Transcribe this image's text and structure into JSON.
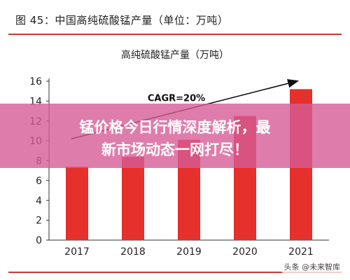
{
  "figure": {
    "caption": "图 45：中国高纯硫酸锰产量（单位：万吨）"
  },
  "overlay": {
    "line1": "锰价格今日行情深度解析，最",
    "line2": "新市场动态一网打尽！"
  },
  "watermark": "头条 @未来智库",
  "colors": {
    "bar": "#e5302c",
    "rule": "#c9392f",
    "overlay": "#d65c96"
  },
  "chart_data": {
    "type": "bar",
    "title": "高纯硫酸锰产量（万吨）",
    "categories": [
      "2017",
      "2018",
      "2019",
      "2020",
      "2021"
    ],
    "values": [
      7.4,
      8.4,
      10.1,
      12.5,
      15.2
    ],
    "ylim": [
      0,
      16
    ],
    "yticks": [
      0,
      2,
      4,
      6,
      8,
      10,
      12,
      14,
      16
    ],
    "annotation": "CAGR=20%",
    "grid": false,
    "trend_arrow": true
  }
}
